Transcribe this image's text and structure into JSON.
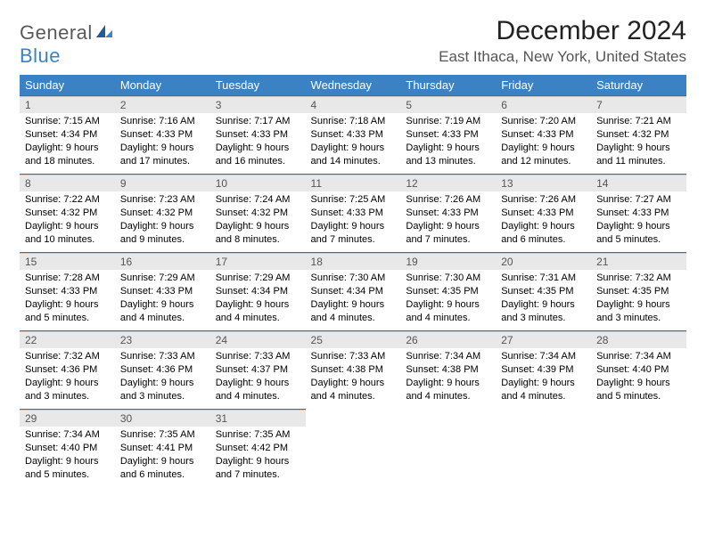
{
  "logo": {
    "text1": "General",
    "text2": "Blue"
  },
  "title": "December 2024",
  "location": "East Ithaca, New York, United States",
  "colors": {
    "header_bg": "#3b82c4",
    "header_fg": "#ffffff",
    "daynum_bg": "#e8e8e8",
    "row_divider": "#3b6fa0",
    "logo_gray": "#5a5a5a",
    "logo_blue": "#3b82c4"
  },
  "fonts": {
    "title_size": 30,
    "location_size": 17,
    "header_size": 13,
    "daynum_size": 12,
    "body_size": 11
  },
  "weekdays": [
    "Sunday",
    "Monday",
    "Tuesday",
    "Wednesday",
    "Thursday",
    "Friday",
    "Saturday"
  ],
  "weeks": [
    [
      {
        "n": "1",
        "sr": "7:15 AM",
        "ss": "4:34 PM",
        "dl": "9 hours and 18 minutes."
      },
      {
        "n": "2",
        "sr": "7:16 AM",
        "ss": "4:33 PM",
        "dl": "9 hours and 17 minutes."
      },
      {
        "n": "3",
        "sr": "7:17 AM",
        "ss": "4:33 PM",
        "dl": "9 hours and 16 minutes."
      },
      {
        "n": "4",
        "sr": "7:18 AM",
        "ss": "4:33 PM",
        "dl": "9 hours and 14 minutes."
      },
      {
        "n": "5",
        "sr": "7:19 AM",
        "ss": "4:33 PM",
        "dl": "9 hours and 13 minutes."
      },
      {
        "n": "6",
        "sr": "7:20 AM",
        "ss": "4:33 PM",
        "dl": "9 hours and 12 minutes."
      },
      {
        "n": "7",
        "sr": "7:21 AM",
        "ss": "4:32 PM",
        "dl": "9 hours and 11 minutes."
      }
    ],
    [
      {
        "n": "8",
        "sr": "7:22 AM",
        "ss": "4:32 PM",
        "dl": "9 hours and 10 minutes."
      },
      {
        "n": "9",
        "sr": "7:23 AM",
        "ss": "4:32 PM",
        "dl": "9 hours and 9 minutes."
      },
      {
        "n": "10",
        "sr": "7:24 AM",
        "ss": "4:32 PM",
        "dl": "9 hours and 8 minutes."
      },
      {
        "n": "11",
        "sr": "7:25 AM",
        "ss": "4:33 PM",
        "dl": "9 hours and 7 minutes."
      },
      {
        "n": "12",
        "sr": "7:26 AM",
        "ss": "4:33 PM",
        "dl": "9 hours and 7 minutes."
      },
      {
        "n": "13",
        "sr": "7:26 AM",
        "ss": "4:33 PM",
        "dl": "9 hours and 6 minutes."
      },
      {
        "n": "14",
        "sr": "7:27 AM",
        "ss": "4:33 PM",
        "dl": "9 hours and 5 minutes."
      }
    ],
    [
      {
        "n": "15",
        "sr": "7:28 AM",
        "ss": "4:33 PM",
        "dl": "9 hours and 5 minutes."
      },
      {
        "n": "16",
        "sr": "7:29 AM",
        "ss": "4:33 PM",
        "dl": "9 hours and 4 minutes."
      },
      {
        "n": "17",
        "sr": "7:29 AM",
        "ss": "4:34 PM",
        "dl": "9 hours and 4 minutes."
      },
      {
        "n": "18",
        "sr": "7:30 AM",
        "ss": "4:34 PM",
        "dl": "9 hours and 4 minutes."
      },
      {
        "n": "19",
        "sr": "7:30 AM",
        "ss": "4:35 PM",
        "dl": "9 hours and 4 minutes."
      },
      {
        "n": "20",
        "sr": "7:31 AM",
        "ss": "4:35 PM",
        "dl": "9 hours and 3 minutes."
      },
      {
        "n": "21",
        "sr": "7:32 AM",
        "ss": "4:35 PM",
        "dl": "9 hours and 3 minutes."
      }
    ],
    [
      {
        "n": "22",
        "sr": "7:32 AM",
        "ss": "4:36 PM",
        "dl": "9 hours and 3 minutes."
      },
      {
        "n": "23",
        "sr": "7:33 AM",
        "ss": "4:36 PM",
        "dl": "9 hours and 3 minutes."
      },
      {
        "n": "24",
        "sr": "7:33 AM",
        "ss": "4:37 PM",
        "dl": "9 hours and 4 minutes."
      },
      {
        "n": "25",
        "sr": "7:33 AM",
        "ss": "4:38 PM",
        "dl": "9 hours and 4 minutes."
      },
      {
        "n": "26",
        "sr": "7:34 AM",
        "ss": "4:38 PM",
        "dl": "9 hours and 4 minutes."
      },
      {
        "n": "27",
        "sr": "7:34 AM",
        "ss": "4:39 PM",
        "dl": "9 hours and 4 minutes."
      },
      {
        "n": "28",
        "sr": "7:34 AM",
        "ss": "4:40 PM",
        "dl": "9 hours and 5 minutes."
      }
    ],
    [
      {
        "n": "29",
        "sr": "7:34 AM",
        "ss": "4:40 PM",
        "dl": "9 hours and 5 minutes."
      },
      {
        "n": "30",
        "sr": "7:35 AM",
        "ss": "4:41 PM",
        "dl": "9 hours and 6 minutes."
      },
      {
        "n": "31",
        "sr": "7:35 AM",
        "ss": "4:42 PM",
        "dl": "9 hours and 7 minutes."
      },
      null,
      null,
      null,
      null
    ]
  ],
  "labels": {
    "sunrise": "Sunrise:",
    "sunset": "Sunset:",
    "daylight": "Daylight:"
  }
}
